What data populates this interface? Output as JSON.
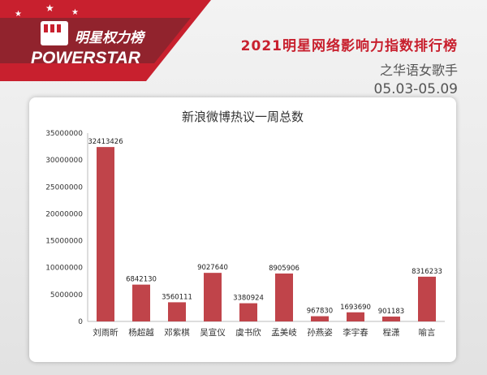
{
  "brand": {
    "title": "明星权力榜",
    "subtitle": "POWERSTAR",
    "accent": "#c8202e"
  },
  "header": {
    "title": "2021明星网络影响力指数排行榜",
    "subtitle": "之华语女歌手",
    "date_range": "05.03-05.09"
  },
  "chart_data": {
    "type": "bar",
    "title": "新浪微博热议一周总数",
    "categories": [
      "刘雨昕",
      "杨超越",
      "邓紫棋",
      "吴宣仪",
      "虞书欣",
      "孟美岐",
      "孙燕姿",
      "李宇春",
      "程潇",
      "喻言"
    ],
    "values": [
      32413426,
      6842130,
      3560111,
      9027640,
      3380924,
      8905906,
      967830,
      1693690,
      901183,
      8316233
    ],
    "labels": [
      "32413426",
      "6842130",
      "3560111",
      "9027640",
      "3380924",
      "8905906",
      "967830",
      "1693690",
      "901183",
      "8316233"
    ],
    "ylim": [
      0,
      35000000
    ],
    "yticks": [
      "0",
      "5000000",
      "10000000",
      "15000000",
      "20000000",
      "25000000",
      "30000000",
      "35000000"
    ],
    "grid": false,
    "bar_color": "#c0444a",
    "xlabel": "",
    "ylabel": ""
  }
}
